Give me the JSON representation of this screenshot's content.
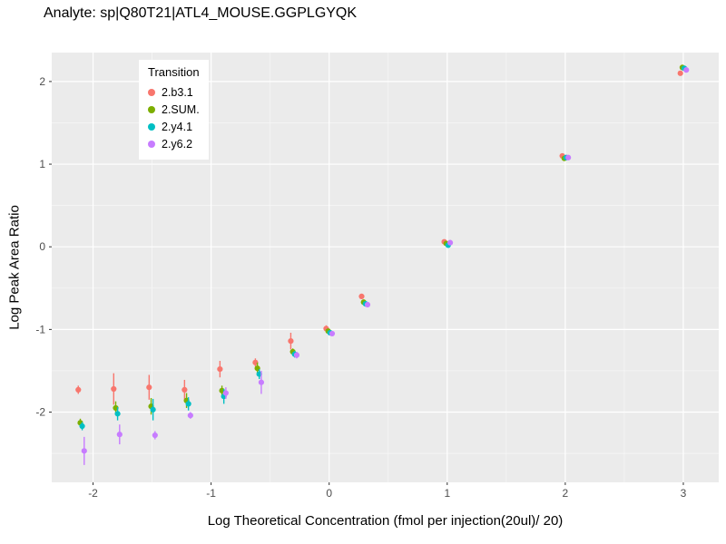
{
  "title": "Analyte: sp|Q80T21|ATL4_MOUSE.GGPLGYQK",
  "colors": {
    "panel_background": "#EBEBEB",
    "grid_major": "#FFFFFF",
    "grid_minor": "#F7F7F7",
    "tick_text": "#4D4D4D",
    "tick_mark": "#333333",
    "legend_background": "#FFFFFF",
    "title_text": "#000000"
  },
  "chart_data": {
    "type": "scatter",
    "title": "Analyte: sp|Q80T21|ATL4_MOUSE.GGPLGYQK",
    "xlabel": "Log Theoretical Concentration (fmol per injection(20ul)/ 20)",
    "ylabel": "Log Peak Area Ratio",
    "xlim": [
      -2.35,
      3.3
    ],
    "ylim": [
      -2.85,
      2.35
    ],
    "xticks": [
      -2,
      -1,
      0,
      1,
      2,
      3
    ],
    "yticks": [
      -2,
      -1,
      0,
      1,
      2
    ],
    "grid": true,
    "error_bars": true,
    "legend": {
      "title": "Transition",
      "position": "inside-top-left"
    },
    "series": [
      {
        "name": "2.b3.1",
        "color": "#F8766D",
        "points": [
          {
            "x": -2.1,
            "y": -1.73,
            "e": 0.05
          },
          {
            "x": -1.8,
            "y": -1.72,
            "e": 0.19
          },
          {
            "x": -1.5,
            "y": -1.7,
            "e": 0.15
          },
          {
            "x": -1.2,
            "y": -1.73,
            "e": 0.12
          },
          {
            "x": -0.9,
            "y": -1.48,
            "e": 0.1
          },
          {
            "x": -0.6,
            "y": -1.4,
            "e": 0.05
          },
          {
            "x": -0.3,
            "y": -1.14,
            "e": 0.1
          },
          {
            "x": 0.0,
            "y": -0.99,
            "e": 0.04
          },
          {
            "x": 0.3,
            "y": -0.6,
            "e": 0.03
          },
          {
            "x": 1.0,
            "y": 0.06,
            "e": 0.03
          },
          {
            "x": 2.0,
            "y": 1.1,
            "e": 0.02
          },
          {
            "x": 3.0,
            "y": 2.1,
            "e": 0.02
          }
        ]
      },
      {
        "name": "2.SUM.",
        "color": "#7CAE00",
        "points": [
          {
            "x": -2.1,
            "y": -2.13,
            "e": 0.05
          },
          {
            "x": -1.8,
            "y": -1.95,
            "e": 0.08
          },
          {
            "x": -1.5,
            "y": -1.93,
            "e": 0.1
          },
          {
            "x": -1.2,
            "y": -1.86,
            "e": 0.09
          },
          {
            "x": -0.9,
            "y": -1.74,
            "e": 0.06
          },
          {
            "x": -0.6,
            "y": -1.47,
            "e": 0.07
          },
          {
            "x": -0.3,
            "y": -1.27,
            "e": 0.04
          },
          {
            "x": 0.0,
            "y": -1.02,
            "e": 0.03
          },
          {
            "x": 0.3,
            "y": -0.67,
            "e": 0.03
          },
          {
            "x": 1.0,
            "y": 0.04,
            "e": 0.02
          },
          {
            "x": 2.0,
            "y": 1.07,
            "e": 0.02
          },
          {
            "x": 3.0,
            "y": 2.17,
            "e": 0.02
          }
        ]
      },
      {
        "name": "2.y4.1",
        "color": "#00BFC4",
        "points": [
          {
            "x": -2.1,
            "y": -2.17,
            "e": 0.05
          },
          {
            "x": -1.8,
            "y": -2.02,
            "e": 0.08
          },
          {
            "x": -1.5,
            "y": -1.97,
            "e": 0.13
          },
          {
            "x": -1.2,
            "y": -1.9,
            "e": 0.08
          },
          {
            "x": -0.9,
            "y": -1.81,
            "e": 0.09
          },
          {
            "x": -0.6,
            "y": -1.54,
            "e": 0.06
          },
          {
            "x": -0.3,
            "y": -1.3,
            "e": 0.04
          },
          {
            "x": 0.0,
            "y": -1.04,
            "e": 0.03
          },
          {
            "x": 0.3,
            "y": -0.69,
            "e": 0.03
          },
          {
            "x": 1.0,
            "y": 0.02,
            "e": 0.02
          },
          {
            "x": 2.0,
            "y": 1.08,
            "e": 0.02
          },
          {
            "x": 3.0,
            "y": 2.16,
            "e": 0.02
          }
        ]
      },
      {
        "name": "2.y6.2",
        "color": "#C77CFF",
        "points": [
          {
            "x": -2.1,
            "y": -2.47,
            "e": 0.17
          },
          {
            "x": -1.8,
            "y": -2.27,
            "e": 0.12
          },
          {
            "x": -1.5,
            "y": -2.28,
            "e": 0.05
          },
          {
            "x": -1.2,
            "y": -2.04,
            "e": 0.04
          },
          {
            "x": -0.9,
            "y": -1.77,
            "e": 0.07
          },
          {
            "x": -0.6,
            "y": -1.64,
            "e": 0.14
          },
          {
            "x": -0.3,
            "y": -1.31,
            "e": 0.04
          },
          {
            "x": 0.0,
            "y": -1.05,
            "e": 0.03
          },
          {
            "x": 0.3,
            "y": -0.7,
            "e": 0.03
          },
          {
            "x": 1.0,
            "y": 0.05,
            "e": 0.02
          },
          {
            "x": 2.0,
            "y": 1.08,
            "e": 0.02
          },
          {
            "x": 3.0,
            "y": 2.14,
            "e": 0.02
          }
        ]
      }
    ]
  }
}
